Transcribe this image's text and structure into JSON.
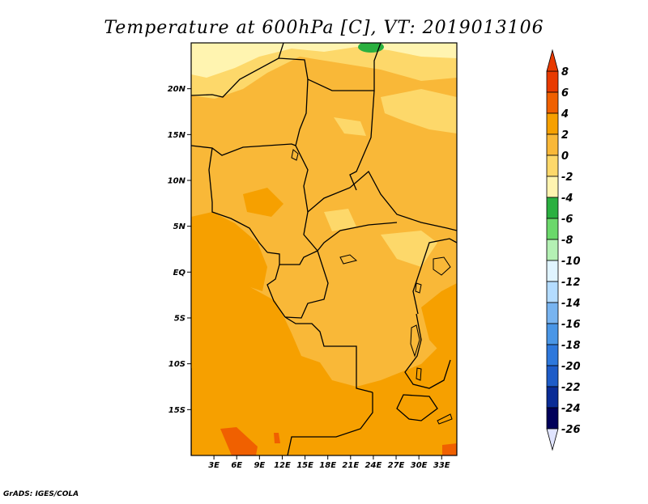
{
  "chart_data": {
    "type": "heatmap",
    "title": "Temperature at 600hPa [C], VT: 2019013106",
    "field": "Temperature at 600hPa",
    "units": "C",
    "valid_time": "2019013106",
    "xlim": [
      0,
      35
    ],
    "ylim": [
      -20,
      25
    ],
    "x_ticks": [
      {
        "value": 3,
        "label": "3E"
      },
      {
        "value": 6,
        "label": "6E"
      },
      {
        "value": 9,
        "label": "9E"
      },
      {
        "value": 12,
        "label": "12E"
      },
      {
        "value": 15,
        "label": "15E"
      },
      {
        "value": 18,
        "label": "18E"
      },
      {
        "value": 21,
        "label": "21E"
      },
      {
        "value": 24,
        "label": "24E"
      },
      {
        "value": 27,
        "label": "27E"
      },
      {
        "value": 30,
        "label": "30E"
      },
      {
        "value": 33,
        "label": "33E"
      }
    ],
    "y_ticks": [
      {
        "value": 20,
        "label": "20N"
      },
      {
        "value": 15,
        "label": "15N"
      },
      {
        "value": 10,
        "label": "10N"
      },
      {
        "value": 5,
        "label": "5N"
      },
      {
        "value": 0,
        "label": "EQ"
      },
      {
        "value": -5,
        "label": "5S"
      },
      {
        "value": -10,
        "label": "10S"
      },
      {
        "value": -15,
        "label": "15S"
      }
    ],
    "colorbar": {
      "levels": [
        8,
        6,
        4,
        2,
        0,
        -2,
        -4,
        -6,
        -8,
        -10,
        -12,
        -14,
        -16,
        -18,
        -20,
        -22,
        -24,
        -26
      ],
      "colors": [
        "#a00000",
        "#e83a00",
        "#f06000",
        "#f6a000",
        "#f9b838",
        "#fdd86a",
        "#fff4b0",
        "#2ab040",
        "#6bd86b",
        "#b4f0b4",
        "#e0f4ff",
        "#b4dcff",
        "#78b4f0",
        "#4a96e6",
        "#2e78dc",
        "#1e5cc8",
        "#0a2c96",
        "#00005a"
      ],
      "bin_colors_top_to_bottom": [
        "#e83a00",
        "#f06000",
        "#f6a000",
        "#f9b838",
        "#fdd86a",
        "#fff4b0",
        "#2ab040",
        "#6bd86b",
        "#b4f0b4",
        "#e0f4ff",
        "#b4dcff",
        "#78b4f0",
        "#4a96e6",
        "#2e78dc",
        "#1e5cc8",
        "#0a2c96",
        "#00005a"
      ],
      "over_color": "#e83a00",
      "under_color": "#e0e4ff"
    },
    "grid": false
  },
  "credit": "GrADS: IGES/COLA"
}
